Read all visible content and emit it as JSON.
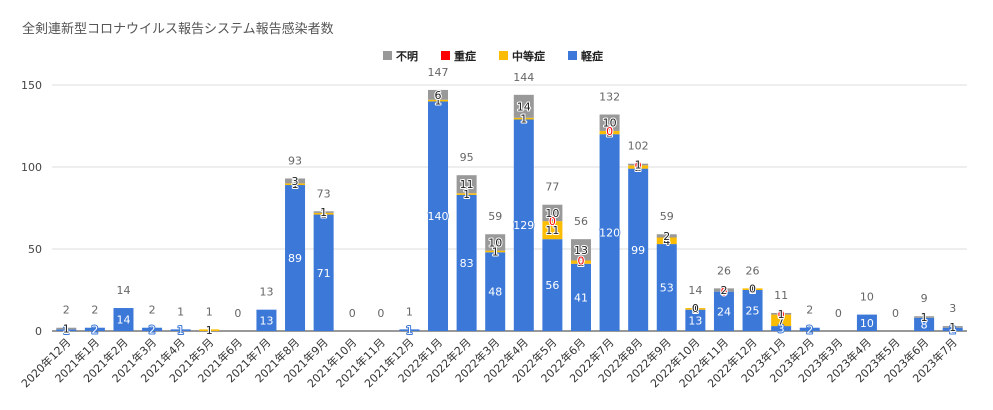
{
  "chart_data": {
    "type": "bar",
    "stacked": true,
    "title": "全剣連新型コロナウイルス報告システム報告感染者数",
    "xlabel": "",
    "ylabel": "",
    "ylim": [
      0,
      150
    ],
    "y_ticks": [
      0,
      50,
      100,
      150
    ],
    "grid": true,
    "legend_position": "top",
    "categories": [
      "2020年12月",
      "2021年1月",
      "2021年2月",
      "2021年3月",
      "2021年4月",
      "2021年5月",
      "2021年6月",
      "2021年7月",
      "2021年8月",
      "2021年9月",
      "2021年10月",
      "2021年11月",
      "2021年12月",
      "2022年1月",
      "2022年2月",
      "2022年3月",
      "2022年4月",
      "2022年5月",
      "2022年6月",
      "2022年7月",
      "2022年8月",
      "2022年9月",
      "2022年10月",
      "2022年11月",
      "2022年12月",
      "2023年1月",
      "2023年2月",
      "2023年3月",
      "2023年4月",
      "2023年5月",
      "2023年6月",
      "2023年7月"
    ],
    "series": [
      {
        "name": "不明",
        "color": "#999999",
        "label_color": "#222222",
        "values": [
          1,
          null,
          null,
          null,
          null,
          null,
          null,
          null,
          3,
          1,
          null,
          null,
          null,
          6,
          11,
          10,
          14,
          10,
          13,
          10,
          1,
          2,
          0,
          2,
          0,
          1,
          null,
          null,
          null,
          null,
          1,
          1
        ]
      },
      {
        "name": "重症",
        "color": "#ff0000",
        "label_color": "#ff0000",
        "values": [
          null,
          null,
          null,
          null,
          null,
          null,
          null,
          null,
          null,
          null,
          null,
          null,
          null,
          null,
          null,
          null,
          null,
          0,
          0,
          0,
          0,
          null,
          null,
          0,
          null,
          0,
          null,
          null,
          null,
          null,
          null,
          null
        ]
      },
      {
        "name": "中等症",
        "color": "#fbbc04",
        "label_color": "#222222",
        "values": [
          null,
          null,
          null,
          null,
          null,
          1,
          null,
          null,
          1,
          1,
          null,
          null,
          null,
          1,
          1,
          1,
          1,
          11,
          2,
          2,
          2,
          4,
          1,
          null,
          1,
          7,
          null,
          null,
          null,
          null,
          null,
          null
        ]
      },
      {
        "name": "軽症",
        "color": "#3c78d8",
        "label_color": "#ffffff",
        "values": [
          1,
          2,
          14,
          2,
          1,
          null,
          null,
          13,
          89,
          71,
          null,
          null,
          1,
          140,
          83,
          48,
          129,
          56,
          41,
          120,
          99,
          53,
          13,
          24,
          25,
          3,
          2,
          null,
          10,
          null,
          8,
          2
        ]
      }
    ],
    "totals": [
      2,
      2,
      14,
      2,
      1,
      1,
      0,
      13,
      93,
      73,
      0,
      0,
      1,
      147,
      95,
      59,
      144,
      77,
      56,
      132,
      102,
      59,
      14,
      26,
      26,
      11,
      2,
      0,
      10,
      0,
      9,
      3
    ]
  }
}
